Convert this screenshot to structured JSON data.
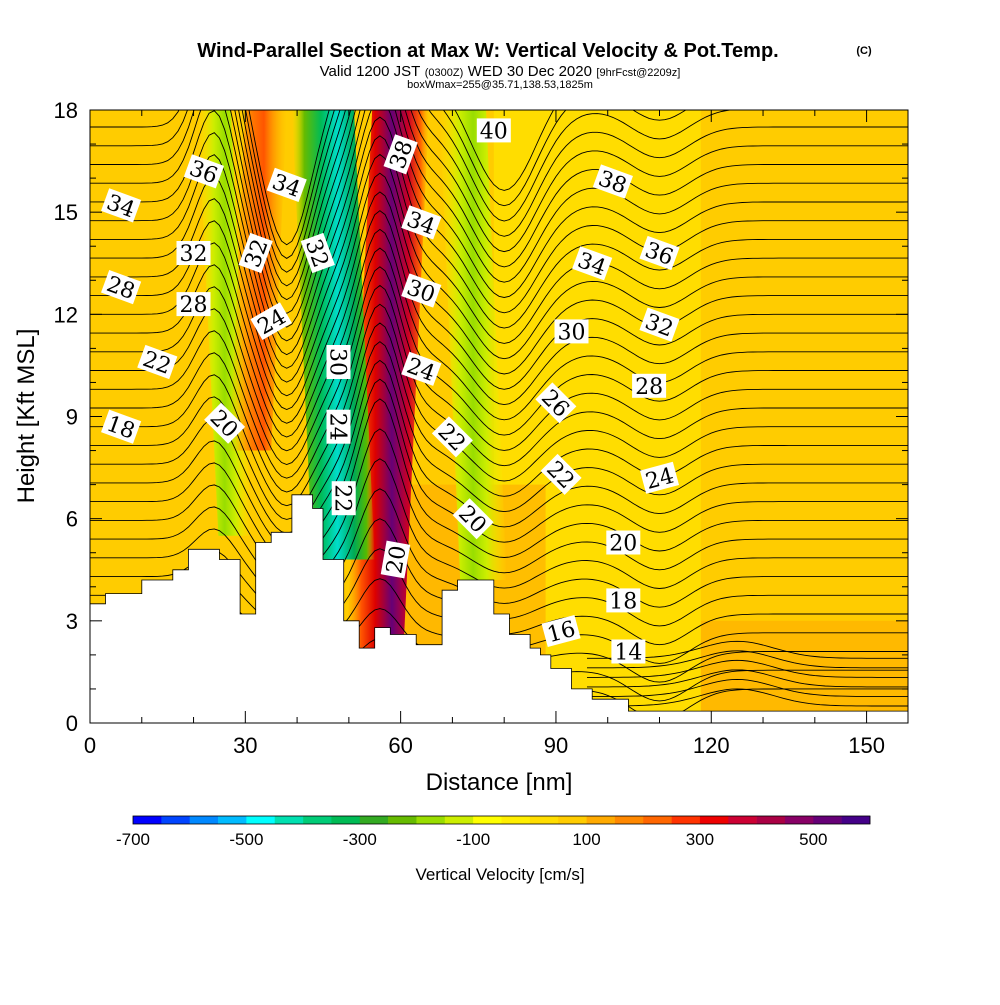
{
  "title": {
    "main": "Wind-Parallel Section at Max W: Vertical Velocity & Pot.Temp.",
    "copyright": "(C)",
    "valid_prefix": "Valid 1200 JST",
    "valid_utc": "(0300Z)",
    "valid_date": "WED 30 Dec 2020",
    "forecast": "[9hrFcst@2209z]",
    "box": "boxWmax=255@35.71,138.53,1825m"
  },
  "chart_data": {
    "type": "heatmap",
    "xlabel": "Distance [nm]",
    "ylabel": "Height [Kft MSL]",
    "xlim": [
      0,
      158
    ],
    "ylim": [
      0,
      18
    ],
    "x_ticks": [
      "0",
      "30",
      "60",
      "90",
      "120",
      "150"
    ],
    "y_ticks": [
      "0",
      "3",
      "6",
      "9",
      "12",
      "15",
      "18"
    ],
    "x_tick_values": [
      0,
      30,
      60,
      90,
      120,
      150
    ],
    "y_tick_values": [
      0,
      3,
      6,
      9,
      12,
      15,
      18
    ],
    "colorbar": {
      "label": "Vertical Velocity [cm/s]",
      "tick_labels": [
        "-700",
        "-500",
        "-300",
        "-100",
        "100",
        "300",
        "500"
      ],
      "tick_values": [
        -700,
        -500,
        -300,
        -100,
        100,
        300,
        500
      ],
      "colors": [
        "#0000ff",
        "#0044ff",
        "#0088ff",
        "#00bbff",
        "#00ffff",
        "#00e0b0",
        "#00cc77",
        "#00bb55",
        "#33aa22",
        "#66bb00",
        "#99dd00",
        "#ccee00",
        "#ffff00",
        "#ffee00",
        "#ffdd00",
        "#ffcc00",
        "#ffaa00",
        "#ff8800",
        "#ff6600",
        "#ff3300",
        "#ee0000",
        "#cc0033",
        "#aa0044",
        "#880066",
        "#660077",
        "#440088"
      ]
    },
    "terrain_profile": {
      "x": [
        0,
        3,
        3,
        10,
        10,
        16,
        16,
        19,
        19,
        25,
        25,
        29,
        29,
        32,
        32,
        35,
        35,
        39,
        39,
        43,
        43,
        45,
        45,
        49,
        49,
        52,
        52,
        55,
        55,
        58,
        58,
        63,
        63,
        68,
        68,
        71,
        71,
        78,
        78,
        81,
        81,
        85,
        85,
        87,
        87,
        89,
        89,
        93,
        93,
        97,
        97,
        104,
        104,
        158
      ],
      "y": [
        3.5,
        3.5,
        3.8,
        3.8,
        4.2,
        4.2,
        4.5,
        4.5,
        5.1,
        5.1,
        4.8,
        4.8,
        3.2,
        3.2,
        5.3,
        5.3,
        5.6,
        5.6,
        6.7,
        6.7,
        6.3,
        6.3,
        4.8,
        4.8,
        3.0,
        3.0,
        2.2,
        2.2,
        2.8,
        2.8,
        2.6,
        2.6,
        2.3,
        2.3,
        3.9,
        3.9,
        4.2,
        4.2,
        3.2,
        3.2,
        2.6,
        2.6,
        2.2,
        2.2,
        2.0,
        2.0,
        1.6,
        1.6,
        1.0,
        1.0,
        0.7,
        0.7,
        0.35,
        0.35
      ]
    },
    "velocity_features": [
      {
        "name": "updraft-core",
        "x_bottom": 55,
        "x_top": 60,
        "y_bottom": 2,
        "y_top": 18,
        "value": 500
      },
      {
        "name": "downdraft-core",
        "x_bottom": 49,
        "x_top": 45,
        "y_bottom": 4.8,
        "y_top": 18,
        "value": -500
      },
      {
        "name": "upwind-downdraft",
        "x_bottom": 28,
        "x_top": 24,
        "y_bottom": 5.5,
        "y_top": 18,
        "value": -200
      },
      {
        "name": "lee-downdraft",
        "x_bottom": 76,
        "x_top": 72,
        "y_bottom": 4.2,
        "y_top": 18,
        "value": -150
      },
      {
        "name": "upwind-updraft",
        "x_bottom": 31,
        "x_top": 34,
        "y_bottom": 8,
        "y_top": 18,
        "value": 250
      }
    ],
    "isentrope_labels": [
      {
        "text": "34",
        "x": 6,
        "y": 15.2,
        "angle": 20
      },
      {
        "text": "36",
        "x": 22,
        "y": 16.2,
        "angle": 20
      },
      {
        "text": "34",
        "x": 38,
        "y": 15.8,
        "angle": 20
      },
      {
        "text": "38",
        "x": 60,
        "y": 16.7,
        "angle": -70
      },
      {
        "text": "40",
        "x": 78,
        "y": 17.4,
        "angle": 0
      },
      {
        "text": "38",
        "x": 101,
        "y": 15.9,
        "angle": 20
      },
      {
        "text": "32",
        "x": 20,
        "y": 13.8,
        "angle": 0
      },
      {
        "text": "32",
        "x": 32,
        "y": 13.8,
        "angle": -70
      },
      {
        "text": "32",
        "x": 44,
        "y": 13.8,
        "angle": 70
      },
      {
        "text": "34",
        "x": 64,
        "y": 14.7,
        "angle": 20
      },
      {
        "text": "34",
        "x": 97,
        "y": 13.5,
        "angle": 20
      },
      {
        "text": "36",
        "x": 110,
        "y": 13.8,
        "angle": 20
      },
      {
        "text": "28",
        "x": 6,
        "y": 12.8,
        "angle": 20
      },
      {
        "text": "28",
        "x": 20,
        "y": 12.3,
        "angle": 0
      },
      {
        "text": "24",
        "x": 35,
        "y": 11.8,
        "angle": -30
      },
      {
        "text": "30",
        "x": 64,
        "y": 12.7,
        "angle": 20
      },
      {
        "text": "30",
        "x": 93,
        "y": 11.5,
        "angle": 0
      },
      {
        "text": "32",
        "x": 110,
        "y": 11.7,
        "angle": 20
      },
      {
        "text": "22",
        "x": 13,
        "y": 10.6,
        "angle": 20
      },
      {
        "text": "30",
        "x": 48,
        "y": 10.6,
        "angle": 90
      },
      {
        "text": "24",
        "x": 64,
        "y": 10.4,
        "angle": 20
      },
      {
        "text": "28",
        "x": 108,
        "y": 9.9,
        "angle": 0
      },
      {
        "text": "18",
        "x": 6,
        "y": 8.7,
        "angle": 20
      },
      {
        "text": "20",
        "x": 26,
        "y": 8.8,
        "angle": 45
      },
      {
        "text": "24",
        "x": 48,
        "y": 8.7,
        "angle": 90
      },
      {
        "text": "22",
        "x": 70,
        "y": 8.4,
        "angle": 45
      },
      {
        "text": "26",
        "x": 90,
        "y": 9.4,
        "angle": 45
      },
      {
        "text": "22",
        "x": 91,
        "y": 7.3,
        "angle": 45
      },
      {
        "text": "24",
        "x": 110,
        "y": 7.2,
        "angle": -15
      },
      {
        "text": "22",
        "x": 49,
        "y": 6.6,
        "angle": 90
      },
      {
        "text": "20",
        "x": 74,
        "y": 6.0,
        "angle": 45
      },
      {
        "text": "20",
        "x": 59,
        "y": 4.8,
        "angle": -80
      },
      {
        "text": "20",
        "x": 103,
        "y": 5.3,
        "angle": 0
      },
      {
        "text": "18",
        "x": 103,
        "y": 3.6,
        "angle": 0
      },
      {
        "text": "16",
        "x": 91,
        "y": 2.7,
        "angle": -15
      },
      {
        "text": "14",
        "x": 104,
        "y": 2.1,
        "angle": 0
      }
    ]
  }
}
